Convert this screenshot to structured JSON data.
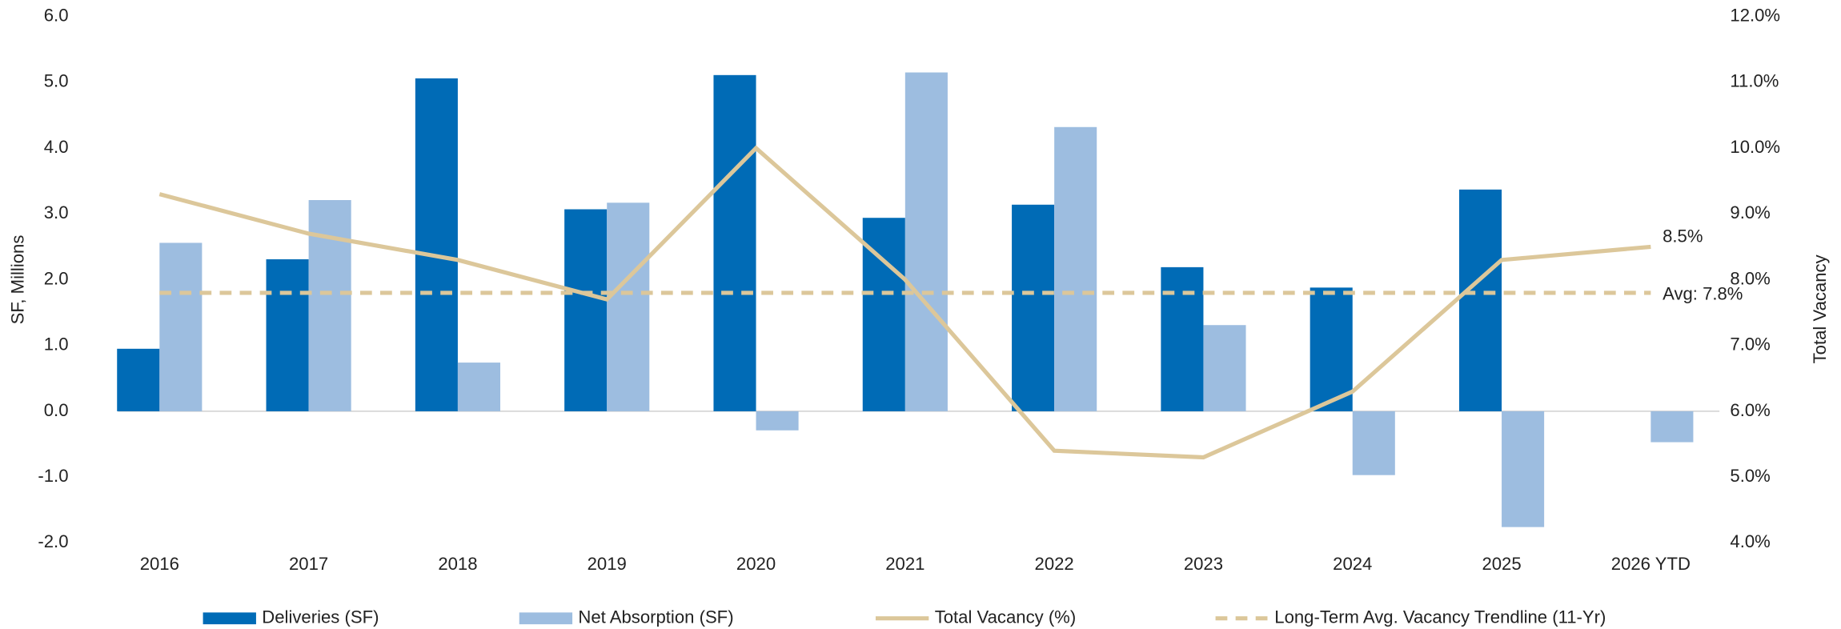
{
  "chart_data": {
    "type": "bar",
    "y_label": "SF, Millions",
    "y2_label": "Total Vacancy",
    "categories": [
      "2016",
      "2017",
      "2018",
      "2019",
      "2020",
      "2021",
      "2022",
      "2023",
      "2024",
      "2025",
      "2026 YTD"
    ],
    "series": [
      {
        "name": "Deliveries (SF)",
        "type": "bar",
        "color": "#006bb6",
        "values": [
          0.95,
          2.31,
          5.06,
          3.07,
          5.11,
          2.94,
          3.14,
          2.19,
          1.88,
          3.37,
          null
        ]
      },
      {
        "name": "Net Absorption (SF)",
        "type": "bar",
        "color": "#9dbde0",
        "values": [
          2.56,
          3.21,
          0.74,
          3.17,
          -0.29,
          5.15,
          4.32,
          1.31,
          -0.97,
          -1.76,
          -0.47
        ]
      },
      {
        "name": "Total Vacancy (%)",
        "type": "line",
        "axis": "y2",
        "color": "#dcc79a",
        "values": [
          9.3,
          8.7,
          8.3,
          7.7,
          10.0,
          8.0,
          5.4,
          5.3,
          6.3,
          8.3,
          8.5
        ],
        "value_labels": [
          null,
          null,
          null,
          null,
          null,
          null,
          null,
          null,
          null,
          null,
          "8.5%"
        ]
      },
      {
        "name": "Long-Term Avg. Vacancy Trendline (11-Yr)",
        "type": "dashed-line",
        "axis": "y2",
        "color": "#dcc79a",
        "values": [
          7.8,
          7.8,
          7.8,
          7.8,
          7.8,
          7.8,
          7.8,
          7.8,
          7.8,
          7.8,
          7.8
        ],
        "value_labels": [
          null,
          null,
          null,
          null,
          null,
          null,
          null,
          null,
          null,
          null,
          "Avg: 7.8%"
        ]
      }
    ],
    "ylim": [
      -2,
      6
    ],
    "yticks": [
      {
        "value": -2,
        "label": "-2.0"
      },
      {
        "value": -1,
        "label": "-1.0"
      },
      {
        "value": 0,
        "label": "0.0"
      },
      {
        "value": 1,
        "label": "1.0"
      },
      {
        "value": 2,
        "label": "2.0"
      },
      {
        "value": 3,
        "label": "3.0"
      },
      {
        "value": 4,
        "label": "4.0"
      },
      {
        "value": 5,
        "label": "5.0"
      },
      {
        "value": 6,
        "label": "6.0"
      }
    ],
    "y2lim": [
      4,
      12
    ],
    "y2ticks": [
      {
        "value": 4,
        "label": "4.0%"
      },
      {
        "value": 5,
        "label": "5.0%"
      },
      {
        "value": 6,
        "label": "6.0%"
      },
      {
        "value": 7,
        "label": "7.0%"
      },
      {
        "value": 8,
        "label": "8.0%"
      },
      {
        "value": 9,
        "label": "9.0%"
      },
      {
        "value": 10,
        "label": "10.0%"
      },
      {
        "value": 11,
        "label": "11.0%"
      },
      {
        "value": 12,
        "label": "12.0%"
      }
    ],
    "legend": "bottom"
  }
}
